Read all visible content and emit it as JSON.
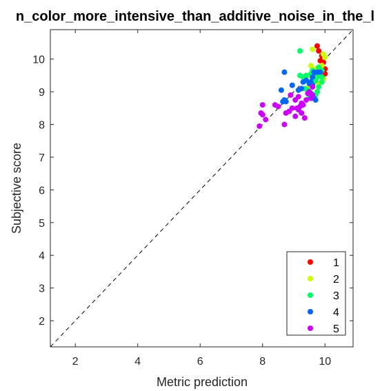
{
  "chart_data": {
    "type": "scatter",
    "title": "n_color_more_intensive_than_additive_noise_in_the_l",
    "xlabel": "Metric prediction",
    "ylabel": "Subjective score",
    "xlim": [
      1.2,
      10.9
    ],
    "ylim": [
      1.2,
      10.9
    ],
    "xticks": [
      "2",
      "4",
      "6",
      "8",
      "10"
    ],
    "yticks": [
      "2",
      "3",
      "4",
      "5",
      "6",
      "7",
      "8",
      "9",
      "10"
    ],
    "grid": false,
    "reference_line": "y = x (dashed)",
    "legend_position": "bottom-right",
    "series": [
      {
        "name": "1",
        "color": "#ff0000",
        "points": [
          [
            9.75,
            10.4
          ],
          [
            9.8,
            10.25
          ],
          [
            9.9,
            10.1
          ],
          [
            9.85,
            9.95
          ],
          [
            9.95,
            9.9
          ],
          [
            10.0,
            9.7
          ],
          [
            9.9,
            9.65
          ],
          [
            9.8,
            9.6
          ],
          [
            10.0,
            9.55
          ],
          [
            9.75,
            9.5
          ]
        ]
      },
      {
        "name": "2",
        "color": "#ccff00",
        "points": [
          [
            9.6,
            10.3
          ],
          [
            9.95,
            10.15
          ],
          [
            10.0,
            10.05
          ],
          [
            9.55,
            9.8
          ],
          [
            9.7,
            9.7
          ],
          [
            9.85,
            9.6
          ],
          [
            9.5,
            9.5
          ],
          [
            9.95,
            9.4
          ],
          [
            9.65,
            9.35
          ],
          [
            9.8,
            9.25
          ],
          [
            9.5,
            9.2
          ],
          [
            9.9,
            9.8
          ]
        ]
      },
      {
        "name": "3",
        "color": "#00ff66",
        "points": [
          [
            9.2,
            10.25
          ],
          [
            9.2,
            9.5
          ],
          [
            9.3,
            9.45
          ],
          [
            9.4,
            9.5
          ],
          [
            9.55,
            9.55
          ],
          [
            9.6,
            9.4
          ],
          [
            9.7,
            9.35
          ],
          [
            9.65,
            9.3
          ],
          [
            9.75,
            9.45
          ],
          [
            9.85,
            9.5
          ],
          [
            9.9,
            9.65
          ],
          [
            9.8,
            9.75
          ],
          [
            9.35,
            9.1
          ],
          [
            9.6,
            9.2
          ],
          [
            9.8,
            9.15
          ],
          [
            9.45,
            9.05
          ],
          [
            9.75,
            9.0
          ],
          [
            9.5,
            8.85
          ],
          [
            9.7,
            8.9
          ],
          [
            9.9,
            9.3
          ],
          [
            9.6,
            9.65
          ],
          [
            9.9,
            9.45
          ]
        ]
      },
      {
        "name": "4",
        "color": "#0066ff",
        "points": [
          [
            8.7,
            9.6
          ],
          [
            9.4,
            9.35
          ],
          [
            9.3,
            9.3
          ],
          [
            9.55,
            9.3
          ],
          [
            9.65,
            9.6
          ],
          [
            9.75,
            9.6
          ],
          [
            9.6,
            9.45
          ],
          [
            8.95,
            9.2
          ],
          [
            8.6,
            9.05
          ],
          [
            9.15,
            9.05
          ],
          [
            8.7,
            8.75
          ],
          [
            8.75,
            8.7
          ],
          [
            9.55,
            8.95
          ],
          [
            9.65,
            8.8
          ],
          [
            9.7,
            8.75
          ],
          [
            9.5,
            9.25
          ],
          [
            9.85,
            9.6
          ],
          [
            9.25,
            9.1
          ],
          [
            9.6,
            9.2
          ],
          [
            8.65,
            8.7
          ]
        ]
      },
      {
        "name": "5",
        "color": "#cc00ff",
        "points": [
          [
            7.9,
            7.95
          ],
          [
            8.0,
            8.6
          ],
          [
            7.95,
            8.35
          ],
          [
            8.0,
            8.3
          ],
          [
            8.1,
            8.15
          ],
          [
            8.4,
            8.6
          ],
          [
            8.5,
            8.55
          ],
          [
            8.7,
            8.0
          ],
          [
            8.75,
            8.35
          ],
          [
            8.85,
            8.4
          ],
          [
            8.9,
            8.9
          ],
          [
            8.95,
            8.5
          ],
          [
            9.05,
            8.25
          ],
          [
            9.05,
            8.75
          ],
          [
            9.1,
            8.5
          ],
          [
            9.15,
            8.45
          ],
          [
            9.15,
            8.85
          ],
          [
            9.25,
            8.65
          ],
          [
            9.25,
            8.35
          ],
          [
            9.35,
            8.2
          ],
          [
            9.3,
            8.6
          ],
          [
            9.4,
            8.75
          ],
          [
            9.45,
            8.95
          ],
          [
            9.5,
            9.0
          ],
          [
            9.55,
            8.8
          ],
          [
            9.6,
            8.9
          ],
          [
            9.6,
            9.15
          ],
          [
            9.2,
            8.55
          ]
        ]
      }
    ]
  }
}
